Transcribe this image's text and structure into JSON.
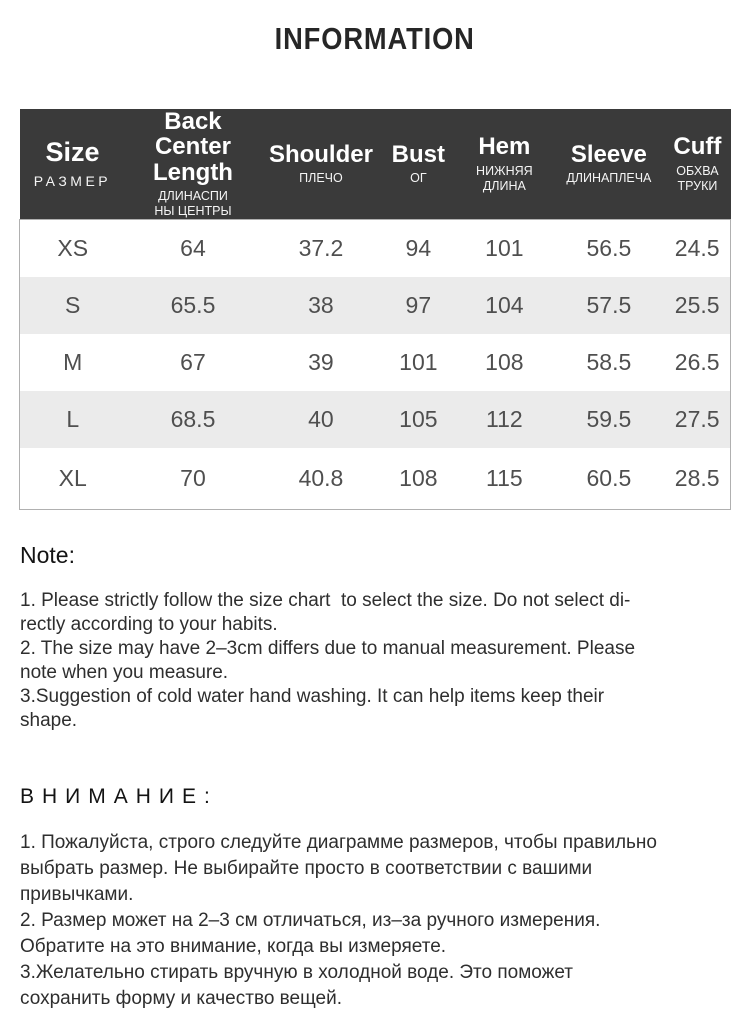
{
  "page": {
    "title": "INFORMATION"
  },
  "colors": {
    "header_bg": "#3a3a3a",
    "header_text": "#ffffff",
    "row_alt_bg": "#ebebeb",
    "table_border": "#b0b0b0",
    "value_text": "#4f4f4f",
    "note_text": "#2e2e2e"
  },
  "size_table": {
    "columns": [
      {
        "main": [
          "Size"
        ],
        "sub": [
          "РАЗМЕР"
        ]
      },
      {
        "main": [
          "Back Center",
          "Length"
        ],
        "sub": [
          "ДЛИНАСПИ",
          "НЫ ЦЕНТРЫ"
        ]
      },
      {
        "main": [
          "Shoulder"
        ],
        "sub": [
          "ПЛЕЧО"
        ]
      },
      {
        "main": [
          "Bust"
        ],
        "sub": [
          "ОГ"
        ]
      },
      {
        "main": [
          "Hem"
        ],
        "sub": [
          "НИЖНЯЯ",
          "ДЛИНА"
        ]
      },
      {
        "main": [
          "Sleeve"
        ],
        "sub": [
          "ДЛИНАПЛЕЧА"
        ]
      },
      {
        "main": [
          "Cuff"
        ],
        "sub": [
          "ОБХВА",
          "ТРУКИ"
        ]
      }
    ],
    "rows": [
      {
        "size": "XS",
        "values": [
          "64",
          "37.2",
          "94",
          "101",
          "56.5",
          "24.5"
        ]
      },
      {
        "size": "S",
        "values": [
          "65.5",
          "38",
          "97",
          "104",
          "57.5",
          "25.5"
        ]
      },
      {
        "size": "M",
        "values": [
          "67",
          "39",
          "101",
          "108",
          "58.5",
          "26.5"
        ]
      },
      {
        "size": "L",
        "values": [
          "68.5",
          "40",
          "105",
          "112",
          "59.5",
          "27.5"
        ]
      },
      {
        "size": "XL",
        "values": [
          "70",
          "40.8",
          "108",
          "115",
          "60.5",
          "28.5"
        ]
      }
    ]
  },
  "note_en": {
    "heading": "Note:",
    "lines": [
      "1. Please strictly follow the size chart  to select the size. Do not select di-",
      "rectly according to your habits.",
      "2. The size may have 2–3cm differs due to manual measurement. Please",
      "note when you measure.",
      "3.Suggestion of cold water hand washing. It can help items keep their",
      "shape."
    ]
  },
  "note_ru": {
    "heading": "ВНИМАНИЕ:",
    "lines": [
      "1. Пожалуйста, строго следуйте диаграмме размеров, чтобы правильно",
      "выбрать размер. Не выбирайте просто в соответствии с вашими",
      "привычками.",
      "2. Размер может на 2–3 см отличаться, из–за ручного измерения.",
      "Обратите на это внимание, когда вы измеряете.",
      "3.Желательно стирать вручную в холодной воде. Это поможет",
      "сохранить форму и качество вещей."
    ]
  }
}
